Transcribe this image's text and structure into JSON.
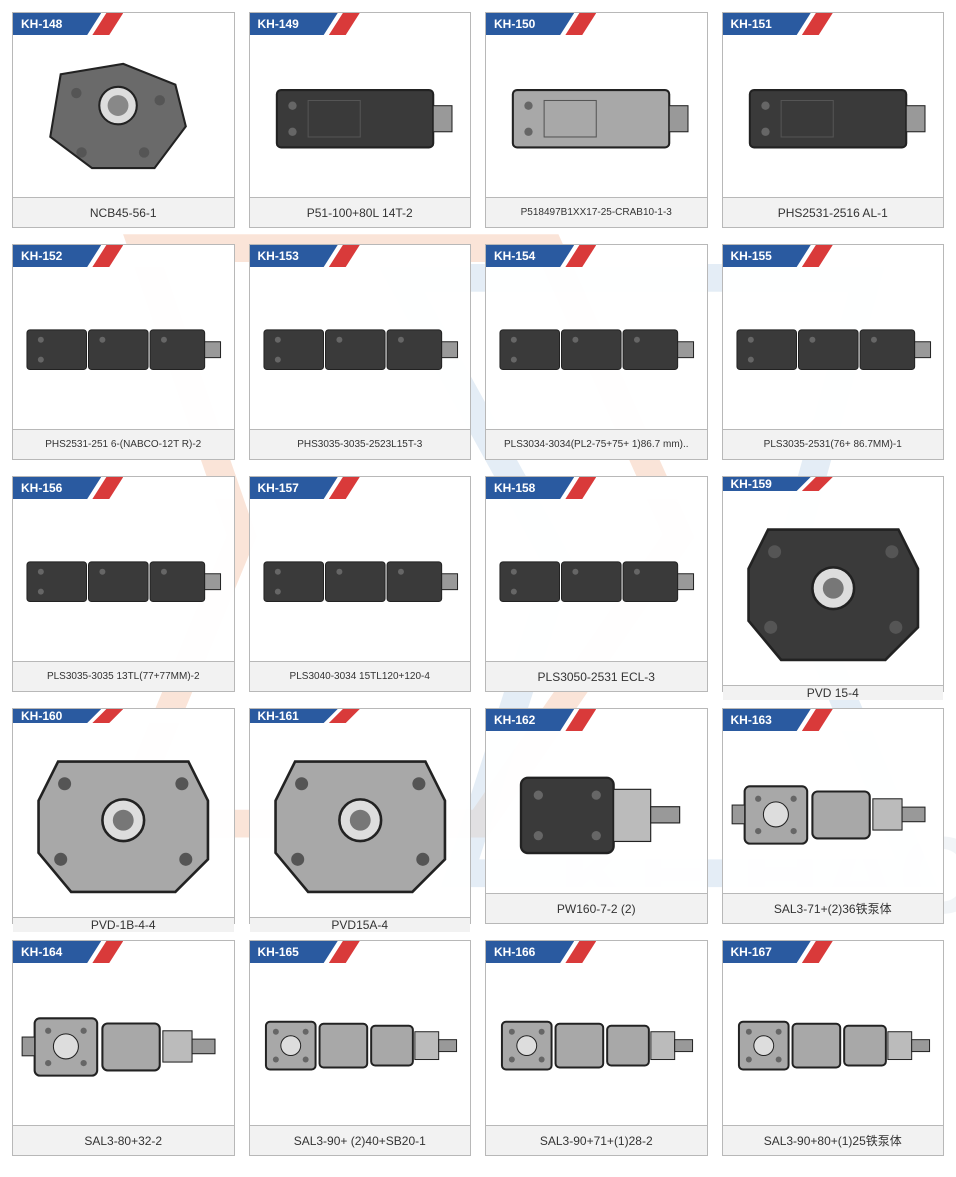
{
  "colors": {
    "header_blue": "#2a5aa0",
    "header_red": "#d93a3a",
    "border": "#b8b8b8",
    "footer_bg": "#f2f2f2",
    "text": "#333333",
    "part_dark": "#3a3a3a",
    "part_light": "#a8a8a8",
    "part_mid": "#6a6a6a",
    "watermark_orange": "#e67a3b",
    "watermark_blue": "#7aa8d0",
    "watermark_text": "#b8cad8"
  },
  "watermark_text": "KE HAO",
  "cards": [
    {
      "code": "KH-148",
      "label": "NCB45-56-1",
      "shape": "housing",
      "tone": "mid"
    },
    {
      "code": "KH-149",
      "label": "P51-100+80L 14T-2",
      "shape": "block",
      "tone": "dark"
    },
    {
      "code": "KH-150",
      "label": "P518497B1XX17-25-CRAB10-1-3",
      "shape": "block",
      "tone": "light",
      "small": true
    },
    {
      "code": "KH-151",
      "label": "PHS2531-2516 AL-1",
      "shape": "block",
      "tone": "dark"
    },
    {
      "code": "KH-152",
      "label": "PHS2531-251 6-(NABCO-12T R)-2",
      "shape": "long",
      "tone": "dark",
      "small": true
    },
    {
      "code": "KH-153",
      "label": "PHS3035-3035-2523L15T-3",
      "shape": "long",
      "tone": "dark",
      "small": true
    },
    {
      "code": "KH-154",
      "label": "PLS3034-3034(PL2-75+75+ 1)86.7 mm)..",
      "shape": "long",
      "tone": "dark",
      "small": true
    },
    {
      "code": "KH-155",
      "label": "PLS3035-2531(76+ 86.7MM)-1",
      "shape": "long",
      "tone": "dark",
      "small": true
    },
    {
      "code": "KH-156",
      "label": "PLS3035-3035 13TL(77+77MM)-2",
      "shape": "long",
      "tone": "dark",
      "small": true
    },
    {
      "code": "KH-157",
      "label": "PLS3040-3034 15TL120+120-4",
      "shape": "long",
      "tone": "dark",
      "small": true
    },
    {
      "code": "KH-158",
      "label": "PLS3050-2531 ECL-3",
      "shape": "long",
      "tone": "dark"
    },
    {
      "code": "KH-159",
      "label": "PVD 15-4",
      "shape": "plate",
      "tone": "dark"
    },
    {
      "code": "KH-160",
      "label": "PVD-1B-4-4",
      "shape": "plate",
      "tone": "light"
    },
    {
      "code": "KH-161",
      "label": "PVD15A-4",
      "shape": "plate",
      "tone": "light"
    },
    {
      "code": "KH-162",
      "label": "PW160-7-2 (2)",
      "shape": "pump",
      "tone": "dark"
    },
    {
      "code": "KH-163",
      "label": "SAL3-71+(2)36铁泵体",
      "shape": "pump2",
      "tone": "light"
    },
    {
      "code": "KH-164",
      "label": "SAL3-80+32-2",
      "shape": "pump2",
      "tone": "light"
    },
    {
      "code": "KH-165",
      "label": "SAL3-90+ (2)40+SB20-1",
      "shape": "pump3",
      "tone": "light"
    },
    {
      "code": "KH-166",
      "label": "SAL3-90+71+(1)28-2",
      "shape": "pump3",
      "tone": "light"
    },
    {
      "code": "KH-167",
      "label": "SAL3-90+80+(1)25铁泵体",
      "shape": "pump3",
      "tone": "light"
    }
  ]
}
